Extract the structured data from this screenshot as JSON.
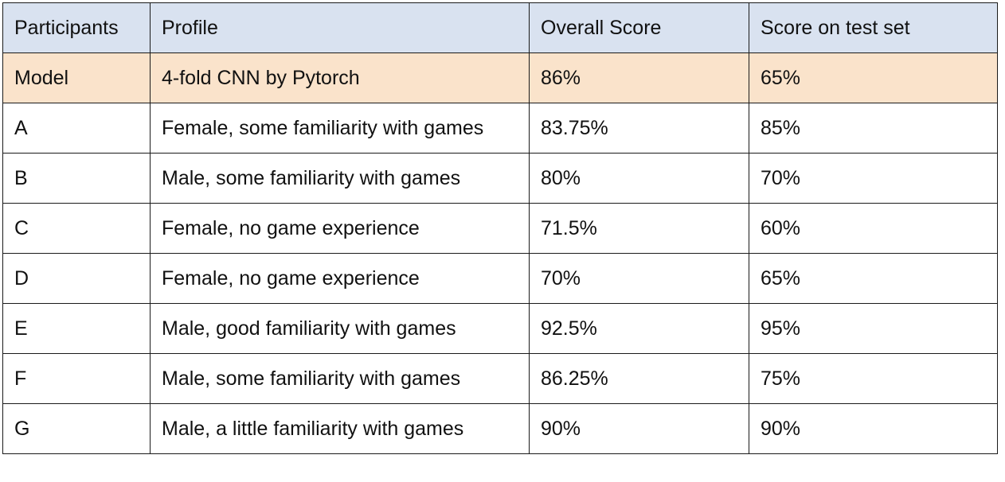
{
  "table": {
    "headers": [
      "Participants",
      "Profile",
      "Overall Score",
      "Score on test set"
    ],
    "rows": [
      [
        "Model",
        "4-fold CNN by Pytorch",
        "86%",
        "65%"
      ],
      [
        "A",
        "Female, some familiarity with games",
        "83.75%",
        "85%"
      ],
      [
        "B",
        "Male, some familiarity with games",
        "80%",
        "70%"
      ],
      [
        "C",
        "Female, no game experience",
        "71.5%",
        "60%"
      ],
      [
        "D",
        "Female, no game experience",
        "70%",
        "65%"
      ],
      [
        "E",
        "Male, good familiarity with games",
        "92.5%",
        "95%"
      ],
      [
        "F",
        "Male, some familiarity with games",
        "86.25%",
        "75%"
      ],
      [
        "G",
        "Male, a little familiarity with games",
        "90%",
        "90%"
      ]
    ],
    "colors": {
      "header_bg": "#d9e2f0",
      "model_row_bg": "#fae3cb",
      "border": "#1a1a1a"
    }
  }
}
